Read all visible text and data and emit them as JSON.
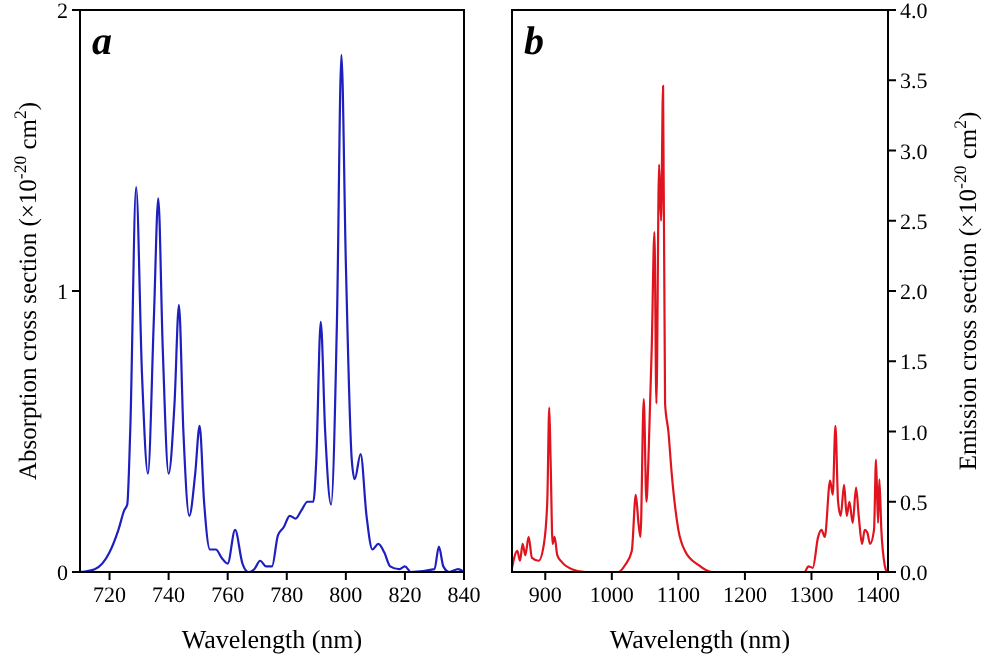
{
  "chart_data": [
    {
      "type": "line",
      "title": "a",
      "xlabel": "Wavelength (nm)",
      "ylabel": "Absorption cross section (×10$^{-20}$ cm$^{2}$)",
      "xlim": [
        710,
        840
      ],
      "xticks": [
        720,
        740,
        760,
        780,
        800,
        820,
        840
      ],
      "ylim": [
        0,
        2
      ],
      "yticks": [
        0,
        1,
        2
      ],
      "grid": false,
      "series": [
        {
          "color": "#1f1fbf",
          "x": [
            710,
            715,
            720,
            723,
            725,
            726,
            727,
            729,
            731,
            733,
            735,
            736.5,
            738,
            740,
            742,
            743.5,
            745,
            747,
            749,
            750.5,
            752,
            754,
            756,
            758,
            760,
            762.5,
            765,
            767,
            769,
            771,
            773,
            775,
            777,
            779,
            781,
            783,
            785,
            787,
            789,
            790,
            791.5,
            793,
            795,
            797,
            798.5,
            800,
            802,
            803,
            805,
            807,
            809,
            811,
            813,
            815,
            818,
            820,
            822,
            830,
            831.5,
            833,
            835,
            838,
            840
          ],
          "values": [
            0,
            0.01,
            0.07,
            0.15,
            0.22,
            0.24,
            0.5,
            1.37,
            0.7,
            0.35,
            0.9,
            1.33,
            0.8,
            0.35,
            0.6,
            0.95,
            0.5,
            0.2,
            0.35,
            0.52,
            0.25,
            0.08,
            0.08,
            0.05,
            0.03,
            0.15,
            0.03,
            0,
            0.01,
            0.04,
            0.02,
            0.02,
            0.13,
            0.16,
            0.2,
            0.19,
            0.22,
            0.25,
            0.25,
            0.4,
            0.89,
            0.5,
            0.24,
            0.9,
            1.84,
            1.1,
            0.4,
            0.33,
            0.42,
            0.2,
            0.08,
            0.1,
            0.07,
            0.02,
            0.01,
            0.02,
            0,
            0.01,
            0.09,
            0.02,
            0,
            0.01,
            0
          ]
        }
      ]
    },
    {
      "type": "line",
      "title": "b",
      "xlabel": "Wavelength (nm)",
      "y2label": "Emission cross section (×10$^{-20}$ cm$^{2}$)",
      "xlim": [
        850,
        1415
      ],
      "xticks": [
        900,
        1000,
        1100,
        1200,
        1300,
        1400
      ],
      "y2lim": [
        0,
        4
      ],
      "y2ticks": [
        {
          "value": 0,
          "label": "0.0"
        },
        {
          "value": 0.5,
          "label": "0.5"
        },
        {
          "value": 1,
          "label": "1.0"
        },
        {
          "value": 1.5,
          "label": "1.5"
        },
        {
          "value": 2,
          "label": "2.0"
        },
        {
          "value": 2.5,
          "label": "2.5"
        },
        {
          "value": 3,
          "label": "3.0"
        },
        {
          "value": 3.5,
          "label": "3.5"
        },
        {
          "value": 4,
          "label": "4.0"
        }
      ],
      "grid": false,
      "series": [
        {
          "color": "#e0141e",
          "axis": "y2",
          "x": [
            850,
            858,
            862,
            866,
            870,
            875,
            880,
            890,
            898,
            903,
            906,
            908,
            911,
            914,
            918,
            925,
            940,
            960,
            1010,
            1020,
            1030,
            1036,
            1040,
            1043,
            1048,
            1052,
            1055,
            1060,
            1064,
            1067,
            1071,
            1074,
            1077,
            1080,
            1085,
            1090,
            1100,
            1110,
            1130,
            1150,
            1290,
            1295,
            1302,
            1310,
            1315,
            1320,
            1328,
            1332,
            1336,
            1340,
            1344,
            1349,
            1353,
            1357,
            1362,
            1367,
            1371,
            1376,
            1380,
            1384,
            1388,
            1394,
            1397,
            1400,
            1402,
            1405,
            1410,
            1413
          ],
          "values": [
            0.03,
            0.15,
            0.08,
            0.2,
            0.12,
            0.25,
            0.1,
            0.08,
            0.2,
            0.5,
            1.17,
            0.8,
            0.2,
            0.25,
            0.12,
            0.07,
            0.02,
            0,
            0,
            0.05,
            0.15,
            0.55,
            0.35,
            0.25,
            1.23,
            0.5,
            0.8,
            1.6,
            2.42,
            1.2,
            2.9,
            2.5,
            3.46,
            1.2,
            1,
            0.7,
            0.3,
            0.15,
            0.05,
            0,
            0,
            0.04,
            0.03,
            0.25,
            0.3,
            0.25,
            0.65,
            0.55,
            1.04,
            0.5,
            0.4,
            0.62,
            0.4,
            0.5,
            0.35,
            0.6,
            0.4,
            0.2,
            0.3,
            0.28,
            0.2,
            0.3,
            0.8,
            0.35,
            0.66,
            0.3,
            0.05,
            0
          ]
        }
      ]
    }
  ]
}
